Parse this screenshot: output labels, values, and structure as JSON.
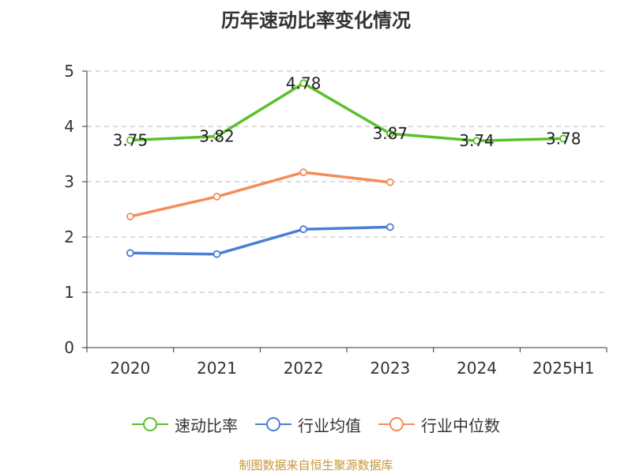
{
  "title": "历年速动比率变化情况",
  "source": "制图数据来自恒生聚源数据库",
  "chart_data": {
    "type": "line",
    "title": "历年速动比率变化情况",
    "categories": [
      "2020",
      "2021",
      "2022",
      "2023",
      "2024",
      "2025H1"
    ],
    "ylim": [
      0,
      5
    ],
    "yticks": [
      0,
      1,
      2,
      3,
      4,
      5
    ],
    "grid": true,
    "legend_position": "bottom",
    "series": [
      {
        "name": "速动比率",
        "color": "#5bc02b",
        "values": [
          3.75,
          3.82,
          4.78,
          3.87,
          3.74,
          3.78
        ],
        "show_labels": true
      },
      {
        "name": "行业均值",
        "color": "#4a7fd4",
        "values": [
          1.71,
          1.69,
          2.14,
          2.18,
          null,
          null
        ],
        "show_labels": false
      },
      {
        "name": "行业中位数",
        "color": "#f48c5a",
        "values": [
          2.37,
          2.73,
          3.17,
          2.99,
          null,
          null
        ],
        "show_labels": false
      }
    ]
  }
}
